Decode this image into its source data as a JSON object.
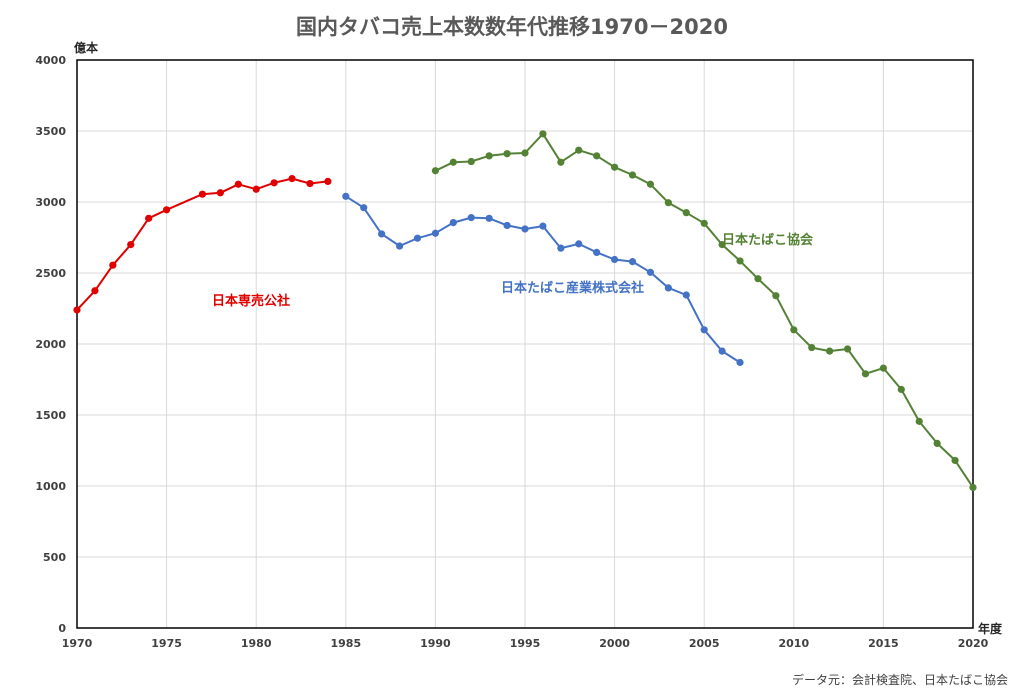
{
  "chart_data": {
    "type": "line",
    "title": "国内タバコ売上本数数年代推移1970－2020",
    "ylabel": "億本",
    "xlabel": "年度",
    "xlim": [
      1970,
      2020
    ],
    "ylim": [
      0,
      4000
    ],
    "x_ticks": [
      1970,
      1975,
      1980,
      1985,
      1990,
      1995,
      2000,
      2005,
      2010,
      2015,
      2020
    ],
    "y_ticks": [
      0,
      500,
      1000,
      1500,
      2000,
      2500,
      3000,
      3500,
      4000
    ],
    "grid": true,
    "source": "データ元：会計検査院、日本たばこ協会",
    "series": [
      {
        "name": "日本専売公社",
        "color": "#e00000",
        "x": [
          1970,
          1971,
          1972,
          1973,
          1974,
          1975,
          1977,
          1978,
          1979,
          1980,
          1981,
          1982,
          1983,
          1984
        ],
        "y": [
          2240,
          2375,
          2555,
          2700,
          2885,
          2945,
          3055,
          3065,
          3125,
          3090,
          3135,
          3165,
          3130,
          3145
        ]
      },
      {
        "name": "日本たばこ産業株式会社",
        "color": "#4472c4",
        "x": [
          1985,
          1986,
          1987,
          1988,
          1989,
          1990,
          1991,
          1992,
          1993,
          1994,
          1995,
          1996,
          1997,
          1998,
          1999,
          2000,
          2001,
          2002,
          2003,
          2004,
          2005,
          2006,
          2007
        ],
        "y": [
          3040,
          2960,
          2775,
          2690,
          2745,
          2780,
          2855,
          2890,
          2885,
          2835,
          2810,
          2830,
          2675,
          2705,
          2645,
          2595,
          2580,
          2505,
          2395,
          2345,
          2100,
          1950,
          1870
        ]
      },
      {
        "name": "日本たばこ協会",
        "color": "#548235",
        "x": [
          1990,
          1991,
          1992,
          1993,
          1994,
          1995,
          1996,
          1997,
          1998,
          1999,
          2000,
          2001,
          2002,
          2003,
          2004,
          2005,
          2006,
          2007,
          2008,
          2009,
          2010,
          2011,
          2012,
          2013,
          2014,
          2015,
          2016,
          2017,
          2018,
          2019,
          2020
        ],
        "y": [
          3220,
          3280,
          3285,
          3325,
          3340,
          3345,
          3480,
          3280,
          3365,
          3325,
          3245,
          3190,
          3125,
          2995,
          2925,
          2850,
          2700,
          2585,
          2460,
          2340,
          2100,
          1975,
          1950,
          1965,
          1790,
          1830,
          1680,
          1455,
          1300,
          1180,
          990
        ]
      }
    ]
  }
}
